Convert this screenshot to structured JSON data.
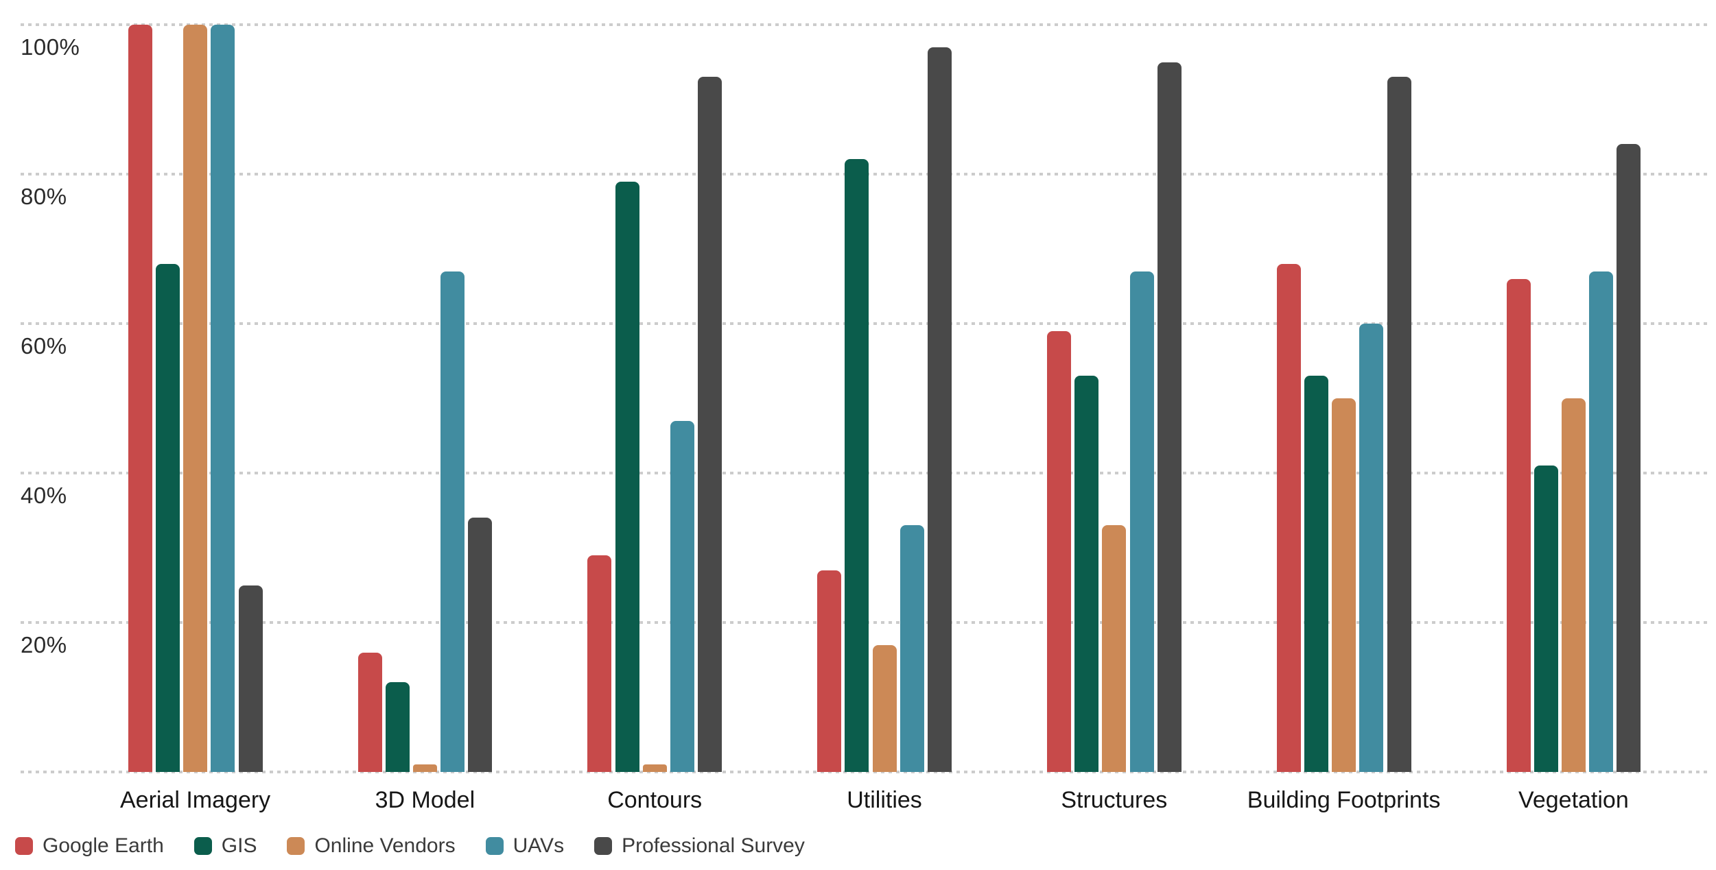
{
  "chart_data": {
    "type": "bar",
    "title": "",
    "xlabel": "",
    "ylabel": "",
    "categories": [
      "Aerial Imagery",
      "3D Model",
      "Contours",
      "Utilities",
      "Structures",
      "Building Footprints",
      "Vegetation"
    ],
    "series": [
      {
        "name": "Google Earth",
        "color": "#C74A4A",
        "values": [
          100,
          16,
          29,
          27,
          59,
          68,
          66
        ]
      },
      {
        "name": "GIS",
        "color": "#0B5D4C",
        "values": [
          68,
          12,
          79,
          82,
          53,
          53,
          41
        ]
      },
      {
        "name": "Online Vendors",
        "color": "#CC8956",
        "values": [
          100,
          1,
          1,
          17,
          33,
          50,
          50
        ]
      },
      {
        "name": "UAVs",
        "color": "#418CA0",
        "values": [
          100,
          67,
          47,
          33,
          67,
          60,
          67
        ]
      },
      {
        "name": "Professional Survey",
        "color": "#494949",
        "values": [
          25,
          34,
          93,
          97,
          95,
          93,
          84
        ]
      }
    ],
    "y_ticks": [
      {
        "value": 100,
        "label": "100%"
      },
      {
        "value": 80,
        "label": "80%"
      },
      {
        "value": 60,
        "label": "60%"
      },
      {
        "value": 40,
        "label": "40%"
      },
      {
        "value": 20,
        "label": "20%"
      }
    ],
    "ylim": [
      0,
      102
    ],
    "grid": "horizontal-dotted",
    "grid_values": [
      0,
      20,
      40,
      60,
      80,
      100
    ],
    "legend_position": "bottom-left",
    "colors": {
      "background": "#ffffff",
      "gridline": "#cccccc",
      "tick_text": "#2b2b2b",
      "category_text": "#161616",
      "legend_text": "#3a3a3a"
    }
  }
}
